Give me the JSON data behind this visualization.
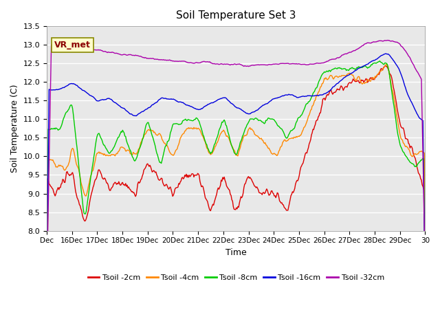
{
  "title": "Soil Temperature Set 3",
  "xlabel": "Time",
  "ylabel": "Soil Temperature (C)",
  "ylim": [
    8.0,
    13.5
  ],
  "plot_bg_color": "#e8e8e8",
  "legend_label": "VR_met",
  "series_labels": [
    "Tsoil -2cm",
    "Tsoil -4cm",
    "Tsoil -8cm",
    "Tsoil -16cm",
    "Tsoil -32cm"
  ],
  "series_colors": [
    "#dd0000",
    "#ff8800",
    "#00cc00",
    "#0000dd",
    "#aa00aa"
  ],
  "xtick_labels": [
    "Dec",
    "16Dec",
    "17Dec",
    "18Dec",
    "19Dec",
    "20Dec",
    "21Dec",
    "22Dec",
    "23Dec",
    "24Dec",
    "25Dec",
    "26Dec",
    "27Dec",
    "28Dec",
    "29Dec",
    "30"
  ],
  "ytick_values": [
    8.0,
    8.5,
    9.0,
    9.5,
    10.0,
    10.5,
    11.0,
    11.5,
    12.0,
    12.5,
    13.0,
    13.5
  ]
}
